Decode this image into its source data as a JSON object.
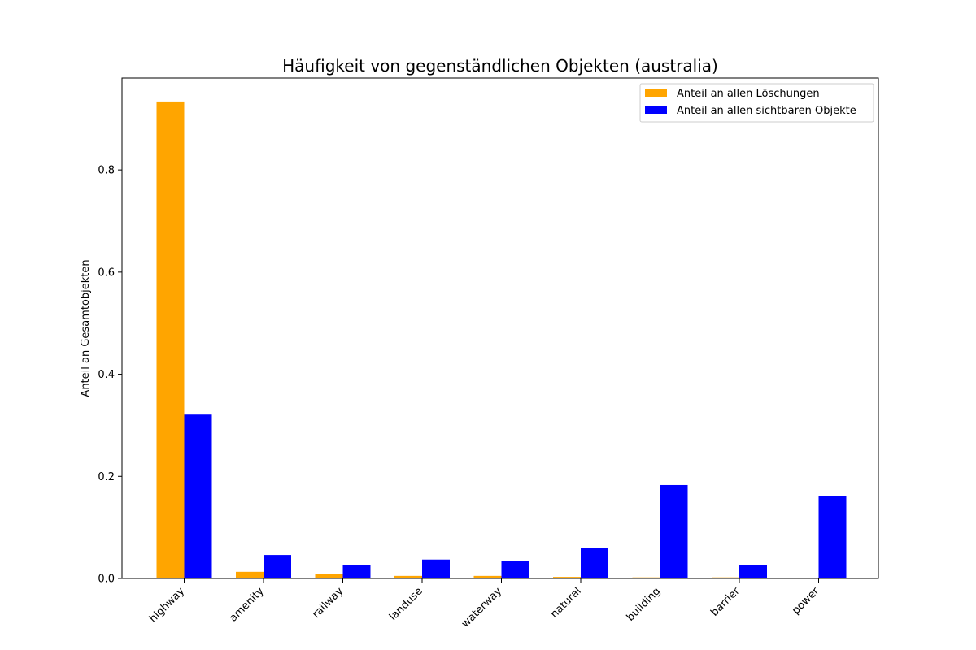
{
  "chart_data": {
    "type": "bar",
    "title": "Häufigkeit von gegenständlichen Objekten (australia)",
    "xlabel": "",
    "ylabel": "Anteil an Gesamtobjekten",
    "categories": [
      "highway",
      "amenity",
      "railway",
      "landuse",
      "waterway",
      "natural",
      "building",
      "barrier",
      "power"
    ],
    "series": [
      {
        "name": "Anteil an allen Löschungen",
        "color": "#ffa500",
        "values": [
          0.934,
          0.013,
          0.009,
          0.005,
          0.005,
          0.003,
          0.002,
          0.002,
          0.001
        ]
      },
      {
        "name": "Anteil an allen sichtbaren Objekte",
        "color": "#0000ff",
        "values": [
          0.321,
          0.046,
          0.026,
          0.037,
          0.034,
          0.059,
          0.183,
          0.027,
          0.162
        ]
      }
    ],
    "yticks": [
      0.0,
      0.2,
      0.4,
      0.6,
      0.8
    ],
    "ytick_labels": [
      "0.0",
      "0.2",
      "0.4",
      "0.6",
      "0.8"
    ],
    "ylim": [
      0,
      0.98
    ],
    "grid": false,
    "legend_position": "top-right"
  }
}
